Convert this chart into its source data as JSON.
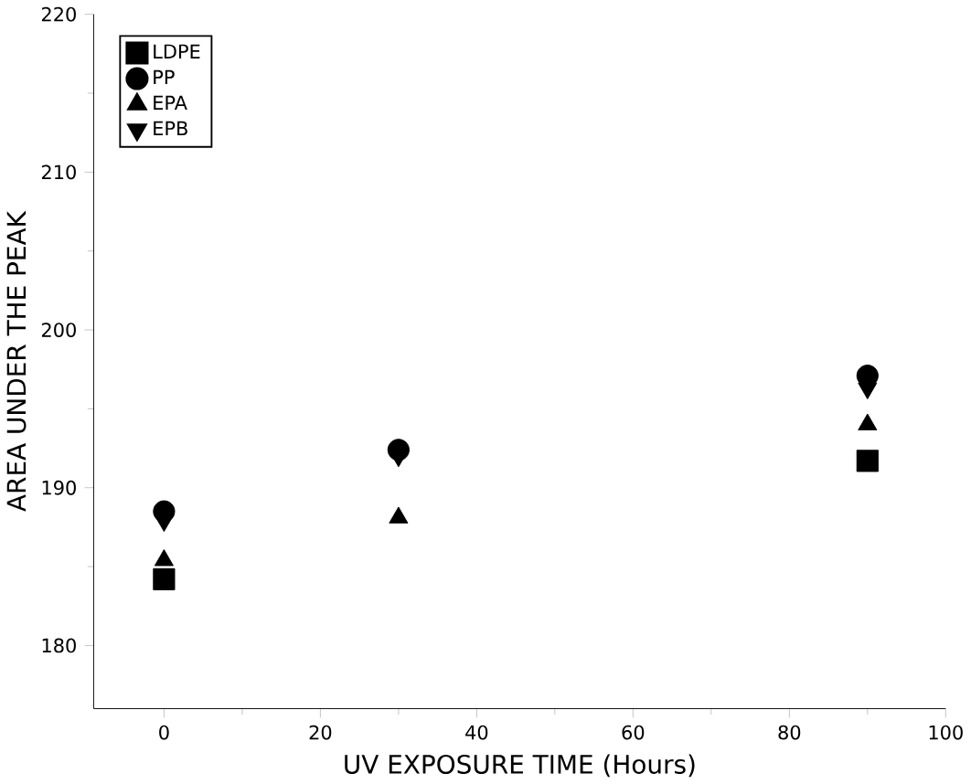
{
  "chart_data": {
    "type": "scatter",
    "xlabel": "UV EXPOSURE TIME (Hours)",
    "ylabel": "AREA UNDER THE PEAK",
    "x": [
      0,
      30,
      90
    ],
    "xlim": [
      -9,
      100
    ],
    "xticks": [
      0,
      20,
      40,
      60,
      80,
      100
    ],
    "ylim": [
      176,
      220
    ],
    "yticks": [
      180,
      190,
      200,
      210,
      220
    ],
    "legend": "top left",
    "series": [
      {
        "name": "LDPE",
        "color": "#000000",
        "marker": "square",
        "values": [
          184.2,
          null,
          191.7
        ]
      },
      {
        "name": "PP",
        "color": "#000000",
        "marker": "circle",
        "values": [
          188.5,
          192.4,
          197.1
        ]
      },
      {
        "name": "EPA",
        "color": "#000000",
        "marker": "triangle",
        "values": [
          185.4,
          188.1,
          194.0
        ]
      },
      {
        "name": "EPB",
        "color": "#000000",
        "marker": "triangle down",
        "values": [
          187.9,
          192.0,
          196.3
        ]
      }
    ]
  }
}
